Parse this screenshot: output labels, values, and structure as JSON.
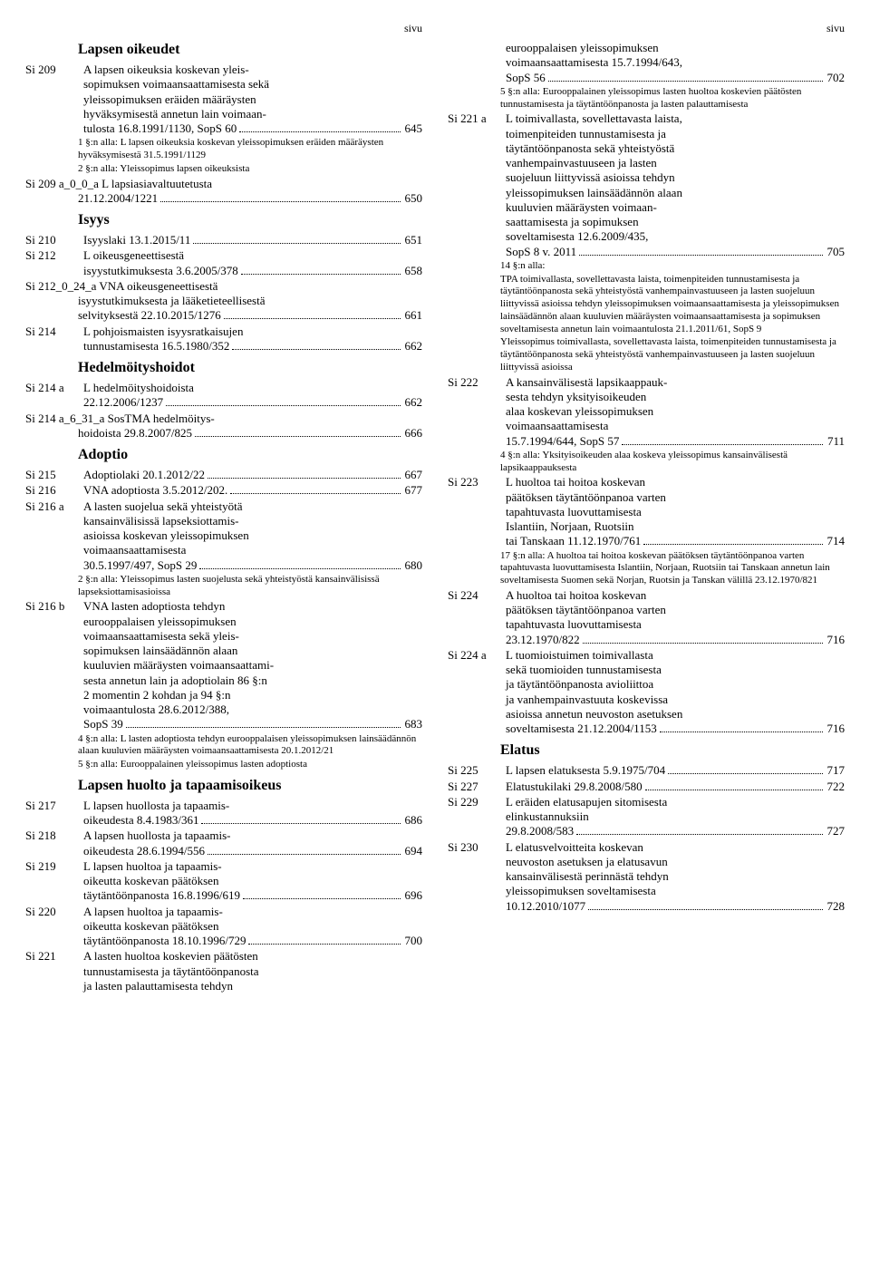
{
  "page_label": "sivu",
  "left": [
    {
      "type": "heading",
      "text": "Lapsen oikeudet"
    },
    {
      "type": "entry",
      "ref": "Si 209",
      "lines": [
        "A lapsen oikeuksia koskevan yleis-",
        "sopimuksen voimaansaattamisesta sekä",
        "yleissopimuksen eräiden määräysten",
        "hyväksymisestä annetun lain voimaan-"
      ],
      "last": "tulosta 16.8.1991/1130, SopS 60",
      "page": "645"
    },
    {
      "type": "note",
      "text": "1 §:n alla: L lapsen oikeuksia koskevan yleissopimuksen eräiden määräysten hyväksymisestä 31.5.1991/1129"
    },
    {
      "type": "note",
      "text": "2 §:n alla: Yleissopimus lapsen oikeuksista"
    },
    {
      "type": "entry",
      "ref": "Si 209 a_0_0_a",
      "reflong": true,
      "joinedfirst": "L lapsiasiavaltuutetusta",
      "last": "21.12.2004/1221",
      "page": "650"
    },
    {
      "type": "heading",
      "text": "Isyys"
    },
    {
      "type": "entry",
      "ref": "Si 210",
      "last": "Isyyslaki 13.1.2015/11",
      "page": "651"
    },
    {
      "type": "entry",
      "ref": "Si 212",
      "lines": [
        "L oikeusgeneettisestä"
      ],
      "last": "isyystutkimuksesta 3.6.2005/378",
      "page": "658"
    },
    {
      "type": "entry",
      "ref": "Si 212_0_24_a",
      "reflong": true,
      "joinedfirst": "VNA oikeusgeneettisestä",
      "lines": [
        "isyystutkimuksesta ja lääketieteellisestä"
      ],
      "last": "selvityksestä 22.10.2015/1276",
      "page": "661"
    },
    {
      "type": "entry",
      "ref": "Si 214",
      "lines": [
        "L pohjoismaisten isyysratkaisujen"
      ],
      "last": "tunnustamisesta 16.5.1980/352",
      "page": "662"
    },
    {
      "type": "heading",
      "text": "Hedelmöityshoidot"
    },
    {
      "type": "entry",
      "ref": "Si 214 a",
      "lines": [
        "L hedelmöityshoidoista"
      ],
      "last": "22.12.2006/1237",
      "page": "662"
    },
    {
      "type": "entry",
      "ref": "Si 214 a_6_31_a",
      "reflong": true,
      "joinedfirst": "SosTMA hedelmöitys-",
      "last": "hoidoista 29.8.2007/825",
      "page": "666"
    },
    {
      "type": "heading",
      "text": "Adoptio"
    },
    {
      "type": "entry",
      "ref": "Si 215",
      "last": "Adoptiolaki 20.1.2012/22",
      "page": "667"
    },
    {
      "type": "entry",
      "ref": "Si 216",
      "last": "VNA adoptiosta 3.5.2012/202.",
      "page": "677"
    },
    {
      "type": "entry",
      "ref": "Si 216 a",
      "lines": [
        "A lasten suojelua sekä yhteistyötä",
        "kansainvälisissä lapseksiottamis-",
        "asioissa koskevan yleissopimuksen",
        "voimaansaattamisesta"
      ],
      "last": "30.5.1997/497, SopS 29",
      "page": "680"
    },
    {
      "type": "note",
      "text": "2 §:n alla: Yleissopimus lasten suojelusta sekä yhteistyöstä kansainvälisissä lapseksiottamisasioissa"
    },
    {
      "type": "entry",
      "ref": "Si 216 b",
      "lines": [
        "VNA lasten adoptiosta tehdyn",
        "eurooppalaisen yleissopimuksen",
        "voimaansaattamisesta sekä yleis-",
        "sopimuksen lainsäädännön alaan",
        "kuuluvien määräysten voimaansaattami-",
        "sesta annetun lain ja adoptiolain 86 §:n",
        "2 momentin 2 kohdan ja 94 §:n",
        "voimaantulosta 28.6.2012/388,"
      ],
      "last": "SopS 39",
      "page": "683"
    },
    {
      "type": "note",
      "text": "4 §:n alla: L lasten adoptiosta tehdyn eurooppalaisen yleissopimuksen lainsäädännön alaan kuuluvien määräysten voimaansaattamisesta 20.1.2012/21"
    },
    {
      "type": "note",
      "text": "5 §:n alla: Eurooppalainen yleissopimus lasten adoptiosta"
    },
    {
      "type": "heading",
      "text": "Lapsen huolto ja tapaamisoikeus"
    },
    {
      "type": "entry",
      "ref": "Si 217",
      "lines": [
        "L lapsen huollosta ja tapaamis-"
      ],
      "last": "oikeudesta 8.4.1983/361",
      "page": "686"
    },
    {
      "type": "entry",
      "ref": "Si 218",
      "lines": [
        "A lapsen huollosta ja tapaamis-"
      ],
      "last": "oikeudesta 28.6.1994/556",
      "page": "694"
    },
    {
      "type": "entry",
      "ref": "Si 219",
      "lines": [
        "L lapsen huoltoa ja tapaamis-",
        "oikeutta koskevan päätöksen"
      ],
      "last": "täytäntöönpanosta 16.8.1996/619",
      "page": "696"
    },
    {
      "type": "entry",
      "ref": "Si 220",
      "lines": [
        "A lapsen huoltoa ja tapaamis-",
        "oikeutta koskevan päätöksen"
      ],
      "last": "täytäntöönpanosta 18.10.1996/729",
      "page": "700"
    },
    {
      "type": "entry",
      "ref": "Si 221",
      "lines": [
        "A lasten huoltoa koskevien päätösten",
        "tunnustamisesta ja täytäntöönpanosta",
        "ja lasten palauttamisesta tehdyn"
      ]
    }
  ],
  "right": [
    {
      "type": "entry",
      "ref": "",
      "lines": [
        "eurooppalaisen yleissopimuksen",
        "voimaansaattamisesta 15.7.1994/643,"
      ],
      "last": "SopS 56",
      "page": "702"
    },
    {
      "type": "note",
      "text": "5 §:n alla: Eurooppalainen yleissopimus lasten huoltoa koskevien päätösten tunnustamisesta ja täytäntöönpanosta ja lasten palauttamisesta"
    },
    {
      "type": "entry",
      "ref": "Si 221 a",
      "lines": [
        "L toimivallasta, sovellettavasta laista,",
        "toimenpiteiden tunnustamisesta ja",
        "täytäntöönpanosta sekä yhteistyöstä",
        "vanhempainvastuuseen ja lasten",
        "suojeluun liittyvissä asioissa tehdyn",
        "yleissopimuksen lainsäädännön alaan",
        "kuuluvien määräysten voimaan-",
        "saattamisesta ja sopimuksen",
        "soveltamisesta 12.6.2009/435,"
      ],
      "last": "SopS 8 v. 2011",
      "page": "705"
    },
    {
      "type": "note",
      "text": "14 §:n alla:"
    },
    {
      "type": "note",
      "text": "TPA toimivallasta, sovellettavasta laista, toimenpiteiden tunnustamisesta ja täytäntöönpanosta sekä yhteistyöstä vanhempainvastuuseen ja lasten suojeluun liittyvissä asioissa tehdyn yleissopimuksen voimaansaattamisesta ja yleissopimuksen lainsäädännön alaan kuuluvien määräysten voimaansaattamisesta ja sopimuksen soveltamisesta annetun lain voimaantulosta 21.1.2011/61, SopS 9"
    },
    {
      "type": "note",
      "text": "Yleissopimus toimivallasta, sovellettavasta laista, toimenpiteiden tunnustamisesta ja täytäntöönpanosta sekä yhteistyöstä vanhempainvastuuseen ja lasten suojeluun liittyvissä asioissa"
    },
    {
      "type": "entry",
      "ref": "Si 222",
      "lines": [
        "A kansainvälisestä lapsikaappauk-",
        "sesta tehdyn yksityisoikeuden",
        "alaa koskevan yleissopimuksen",
        "voimaansaattamisesta"
      ],
      "last": "15.7.1994/644, SopS 57",
      "page": "711"
    },
    {
      "type": "note",
      "text": "4 §:n alla: Yksityisoikeuden alaa koskeva yleissopimus kansainvälisestä lapsikaappauksesta"
    },
    {
      "type": "entry",
      "ref": "Si 223",
      "lines": [
        "L huoltoa tai hoitoa koskevan",
        "päätöksen täytäntöönpanoa varten",
        "tapahtuvasta luovuttamisesta",
        "Islantiin, Norjaan, Ruotsiin"
      ],
      "last": "tai Tanskaan 11.12.1970/761",
      "page": "714"
    },
    {
      "type": "note",
      "text": "17 §:n alla: A huoltoa tai hoitoa koskevan päätöksen täytäntöönpanoa varten tapahtuvasta luovuttamisesta Islantiin, Norjaan, Ruotsiin tai Tanskaan annetun lain soveltamisesta Suomen sekä Norjan, Ruotsin ja Tanskan välillä 23.12.1970/821"
    },
    {
      "type": "entry",
      "ref": "Si 224",
      "lines": [
        "A huoltoa tai hoitoa koskevan",
        "päätöksen täytäntöönpanoa varten",
        "tapahtuvasta luovuttamisesta"
      ],
      "last": "23.12.1970/822",
      "page": "716"
    },
    {
      "type": "entry",
      "ref": "Si 224 a",
      "lines": [
        "L tuomioistuimen toimivallasta",
        "sekä tuomioiden tunnustamisesta",
        "ja täytäntöönpanosta avioliittoa",
        "ja vanhempainvastuuta koskevissa",
        "asioissa annetun neuvoston asetuksen"
      ],
      "last": "soveltamisesta 21.12.2004/1153",
      "page": "716"
    },
    {
      "type": "heading",
      "text": "Elatus"
    },
    {
      "type": "entry",
      "ref": "Si 225",
      "last": "L lapsen elatuksesta 5.9.1975/704",
      "page": "717"
    },
    {
      "type": "entry",
      "ref": "Si 227",
      "last": "Elatustukilaki 29.8.2008/580",
      "page": "722"
    },
    {
      "type": "entry",
      "ref": "Si 229",
      "lines": [
        "L eräiden elatusapujen sitomisesta",
        "elinkustannuksiin"
      ],
      "last": "29.8.2008/583",
      "page": "727"
    },
    {
      "type": "entry",
      "ref": "Si 230",
      "lines": [
        "L elatusvelvoitteita koskevan",
        "neuvoston asetuksen ja elatusavun",
        "kansainvälisestä perinnästä tehdyn",
        "yleissopimuksen soveltamisesta"
      ],
      "last": "10.12.2010/1077",
      "page": "728"
    }
  ]
}
